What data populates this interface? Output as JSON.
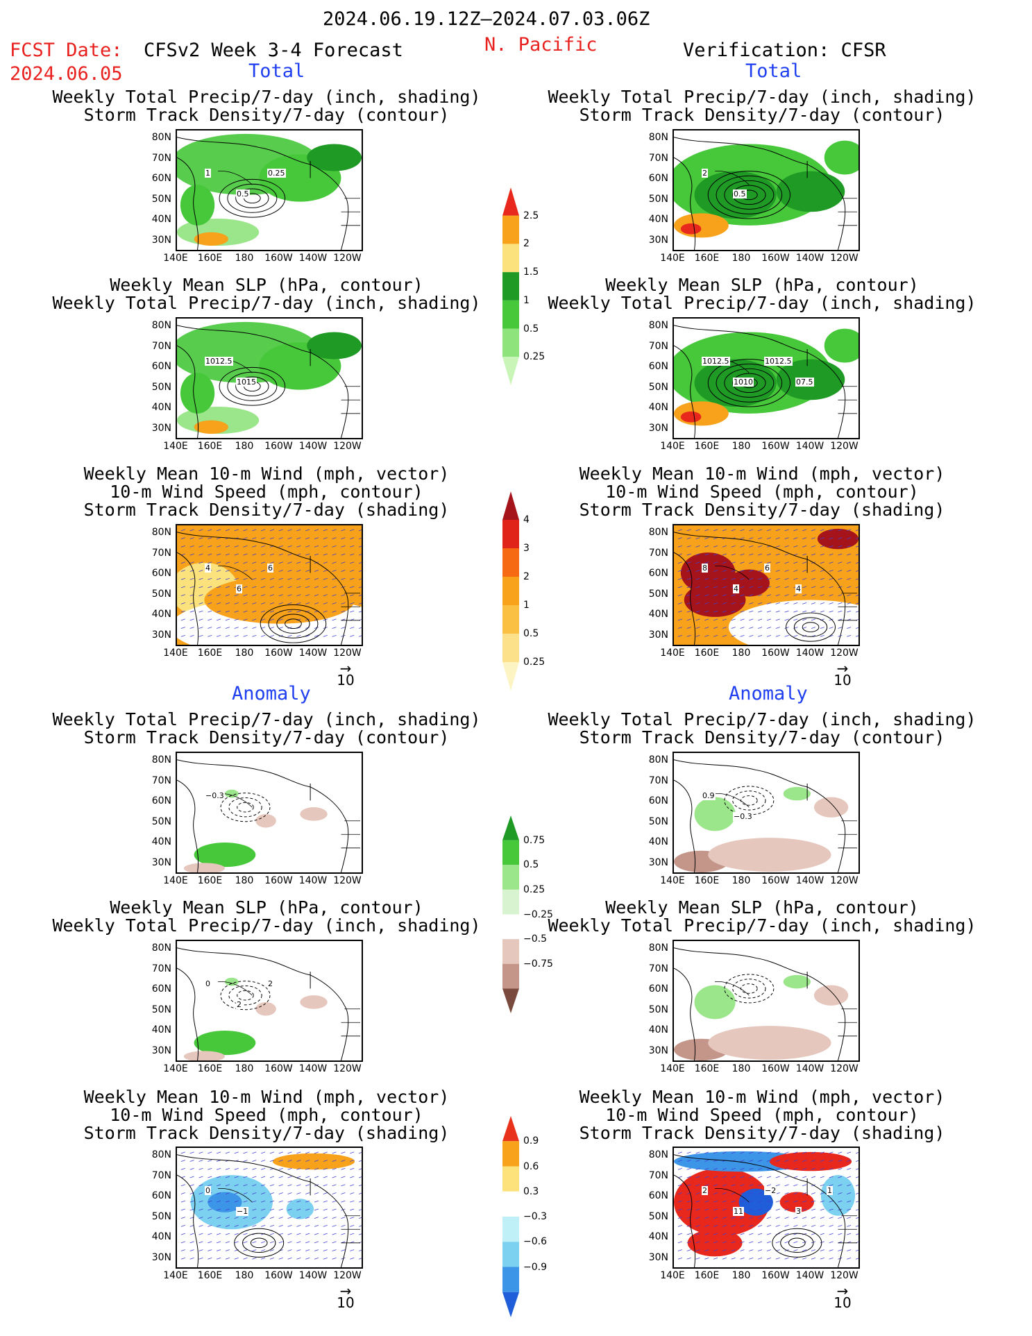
{
  "header": {
    "date_range": "2024.06.19.12Z–2024.07.03.06Z",
    "fcst_label": "FCST Date:",
    "fcst_date": "2024.06.05",
    "forecast_title": "CFSv2 Week 3-4 Forecast",
    "region": "N. Pacific",
    "verification": "Verification: CFSR"
  },
  "sections": {
    "total": "Total",
    "anomaly": "Anomaly"
  },
  "titles": {
    "precip_storm": "Weekly Total Precip/7-day (inch, shading)\nStorm Track Density/7-day (contour)",
    "slp_precip": "Weekly Mean SLP (hPa, contour)\nWeekly Total Precip/7-day (inch, shading)",
    "wind_storm": "Weekly Mean 10-m Wind (mph, vector)\n10-m Wind Speed (mph, contour)\nStorm Track Density/7-day (shading)"
  },
  "axes": {
    "lat_labels": [
      "80N",
      "70N",
      "60N",
      "50N",
      "40N",
      "30N"
    ],
    "lon_labels": [
      "140E",
      "160E",
      "180",
      "160W",
      "140W",
      "120W"
    ]
  },
  "vector_ref": "10",
  "colorbars": {
    "precip_total": {
      "labels": [
        "2.5",
        "2",
        "1.5",
        "1",
        "0.5",
        "0.25"
      ],
      "colors": [
        "#e8281c",
        "#f7a21a",
        "#fbe27c",
        "#1f9a25",
        "#46c83a",
        "#8ee37c",
        "#c9f5b9"
      ]
    },
    "storm_total": {
      "labels": [
        "4",
        "3",
        "2",
        "1",
        "0.5",
        "0.25"
      ],
      "colors": [
        "#a4141a",
        "#e0241a",
        "#f56a12",
        "#f7a21a",
        "#fac044",
        "#fce08a",
        "#fdf4c4"
      ]
    },
    "precip_anom": {
      "labels": [
        "0.75",
        "0.5",
        "0.25",
        "−0.25",
        "−0.5",
        "−0.75"
      ],
      "colors": [
        "#1f9a25",
        "#46c83a",
        "#9be58b",
        "#d8f3cf",
        "#ffffff",
        "#e6c7bd",
        "#c4968a",
        "#7a4a3e"
      ]
    },
    "storm_anom": {
      "labels": [
        "0.9",
        "0.6",
        "0.3",
        "−0.3",
        "−0.6",
        "−0.9"
      ],
      "colors": [
        "#e8321c",
        "#f7a21a",
        "#fde27c",
        "#ffffff",
        "#bff0f7",
        "#7cd0f0",
        "#3d95e8",
        "#1f5ed8"
      ]
    },
    "colormap": {
      "green": "#46c83a",
      "dark_green": "#1f9a25",
      "light_green": "#9be58b",
      "orange": "#f7a21a",
      "red": "#e8281c",
      "yellow": "#fbe27c",
      "brown": "#c4968a",
      "light_brown": "#e6c7bd",
      "cyan": "#7cd0f0",
      "blue": "#3d95e8",
      "dark_red": "#a4141a"
    }
  },
  "contour_labels": {
    "fc_precip_storm": [
      "1",
      "0.5",
      "0.25"
    ],
    "obs_precip_storm": [
      "2",
      "0.5"
    ],
    "fc_slp_precip": [
      "1012.5",
      "1015"
    ],
    "obs_slp_precip": [
      "1012.5",
      "1010",
      "1012.5",
      "07.5"
    ],
    "fc_wind": [
      "4",
      "6",
      "6"
    ],
    "obs_wind": [
      "8",
      "4",
      "6",
      "4"
    ],
    "fc_anom_precip_storm": [
      "−0.3"
    ],
    "obs_anom_precip_storm": [
      "0.9",
      "−0.3"
    ],
    "fc_anom_slp": [
      "0",
      "2",
      "2"
    ],
    "obs_anom_slp": [],
    "fc_anom_wind": [
      "0",
      "−1"
    ],
    "obs_anom_wind": [
      "2",
      "11",
      "−2",
      "3",
      "1"
    ]
  }
}
